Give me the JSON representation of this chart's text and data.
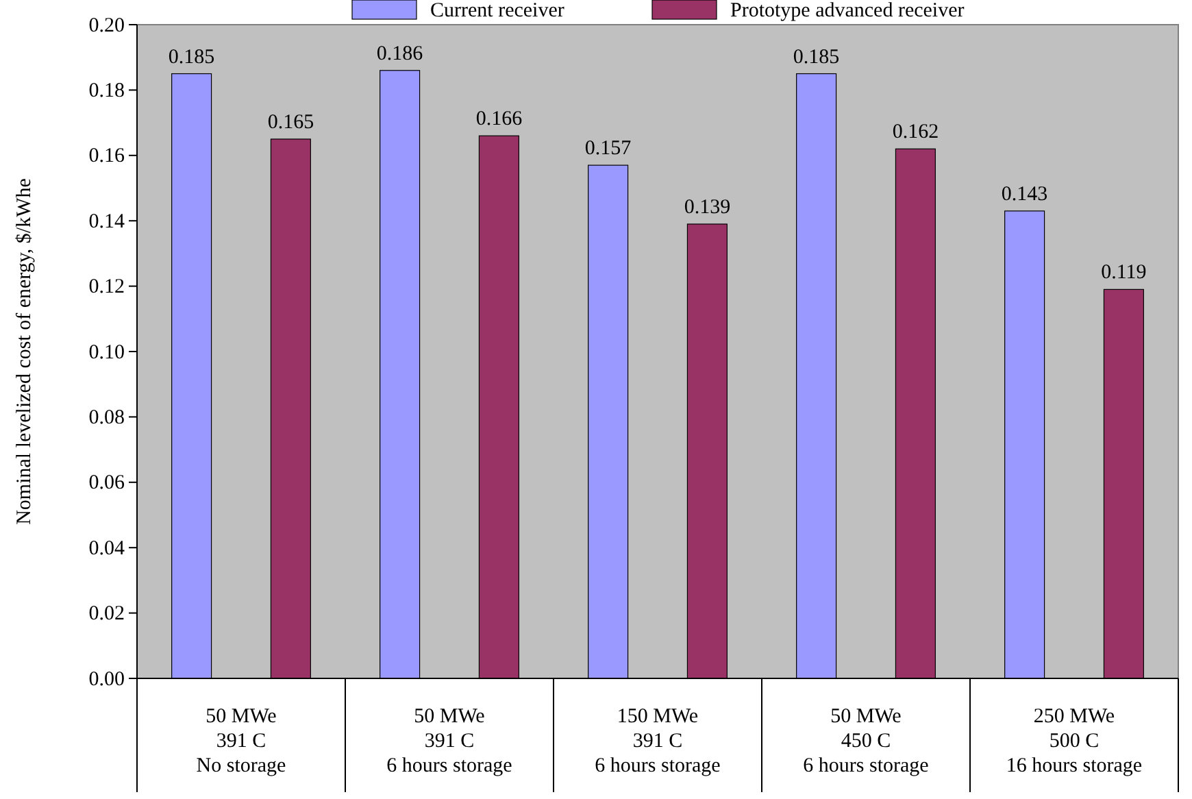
{
  "chart_data": {
    "type": "bar",
    "ylabel": "Nominal levelized cost of energy, $/kWhe",
    "categories": [
      "50 MWe\n391 C\nNo storage",
      "50 MWe\n391 C\n6 hours storage",
      "150 MWe\n391 C\n6 hours storage",
      "50 MWe\n450 C\n6 hours storage",
      "250 MWe\n500 C\n16 hours storage"
    ],
    "series": [
      {
        "name": "Current receiver",
        "color": "#9999ff",
        "values": [
          0.185,
          0.186,
          0.157,
          0.185,
          0.143
        ]
      },
      {
        "name": "Prototype advanced receiver",
        "color": "#993366",
        "values": [
          0.165,
          0.166,
          0.139,
          0.162,
          0.119
        ]
      }
    ],
    "ylim": [
      0,
      0.2
    ],
    "yticks": [
      {
        "value": 0,
        "label": "0.00"
      },
      {
        "value": 0.02,
        "label": "0.02"
      },
      {
        "value": 0.04,
        "label": "0.04"
      },
      {
        "value": 0.06,
        "label": "0.06"
      },
      {
        "value": 0.08,
        "label": "0.08"
      },
      {
        "value": 0.1,
        "label": "0.10"
      },
      {
        "value": 0.12,
        "label": "0.12"
      },
      {
        "value": 0.14,
        "label": "0.14"
      },
      {
        "value": 0.16,
        "label": "0.16"
      },
      {
        "value": 0.18,
        "label": "0.18"
      },
      {
        "value": 0.2,
        "label": "0.20"
      }
    ],
    "data_labels": true,
    "grid": false,
    "legend": "top"
  }
}
